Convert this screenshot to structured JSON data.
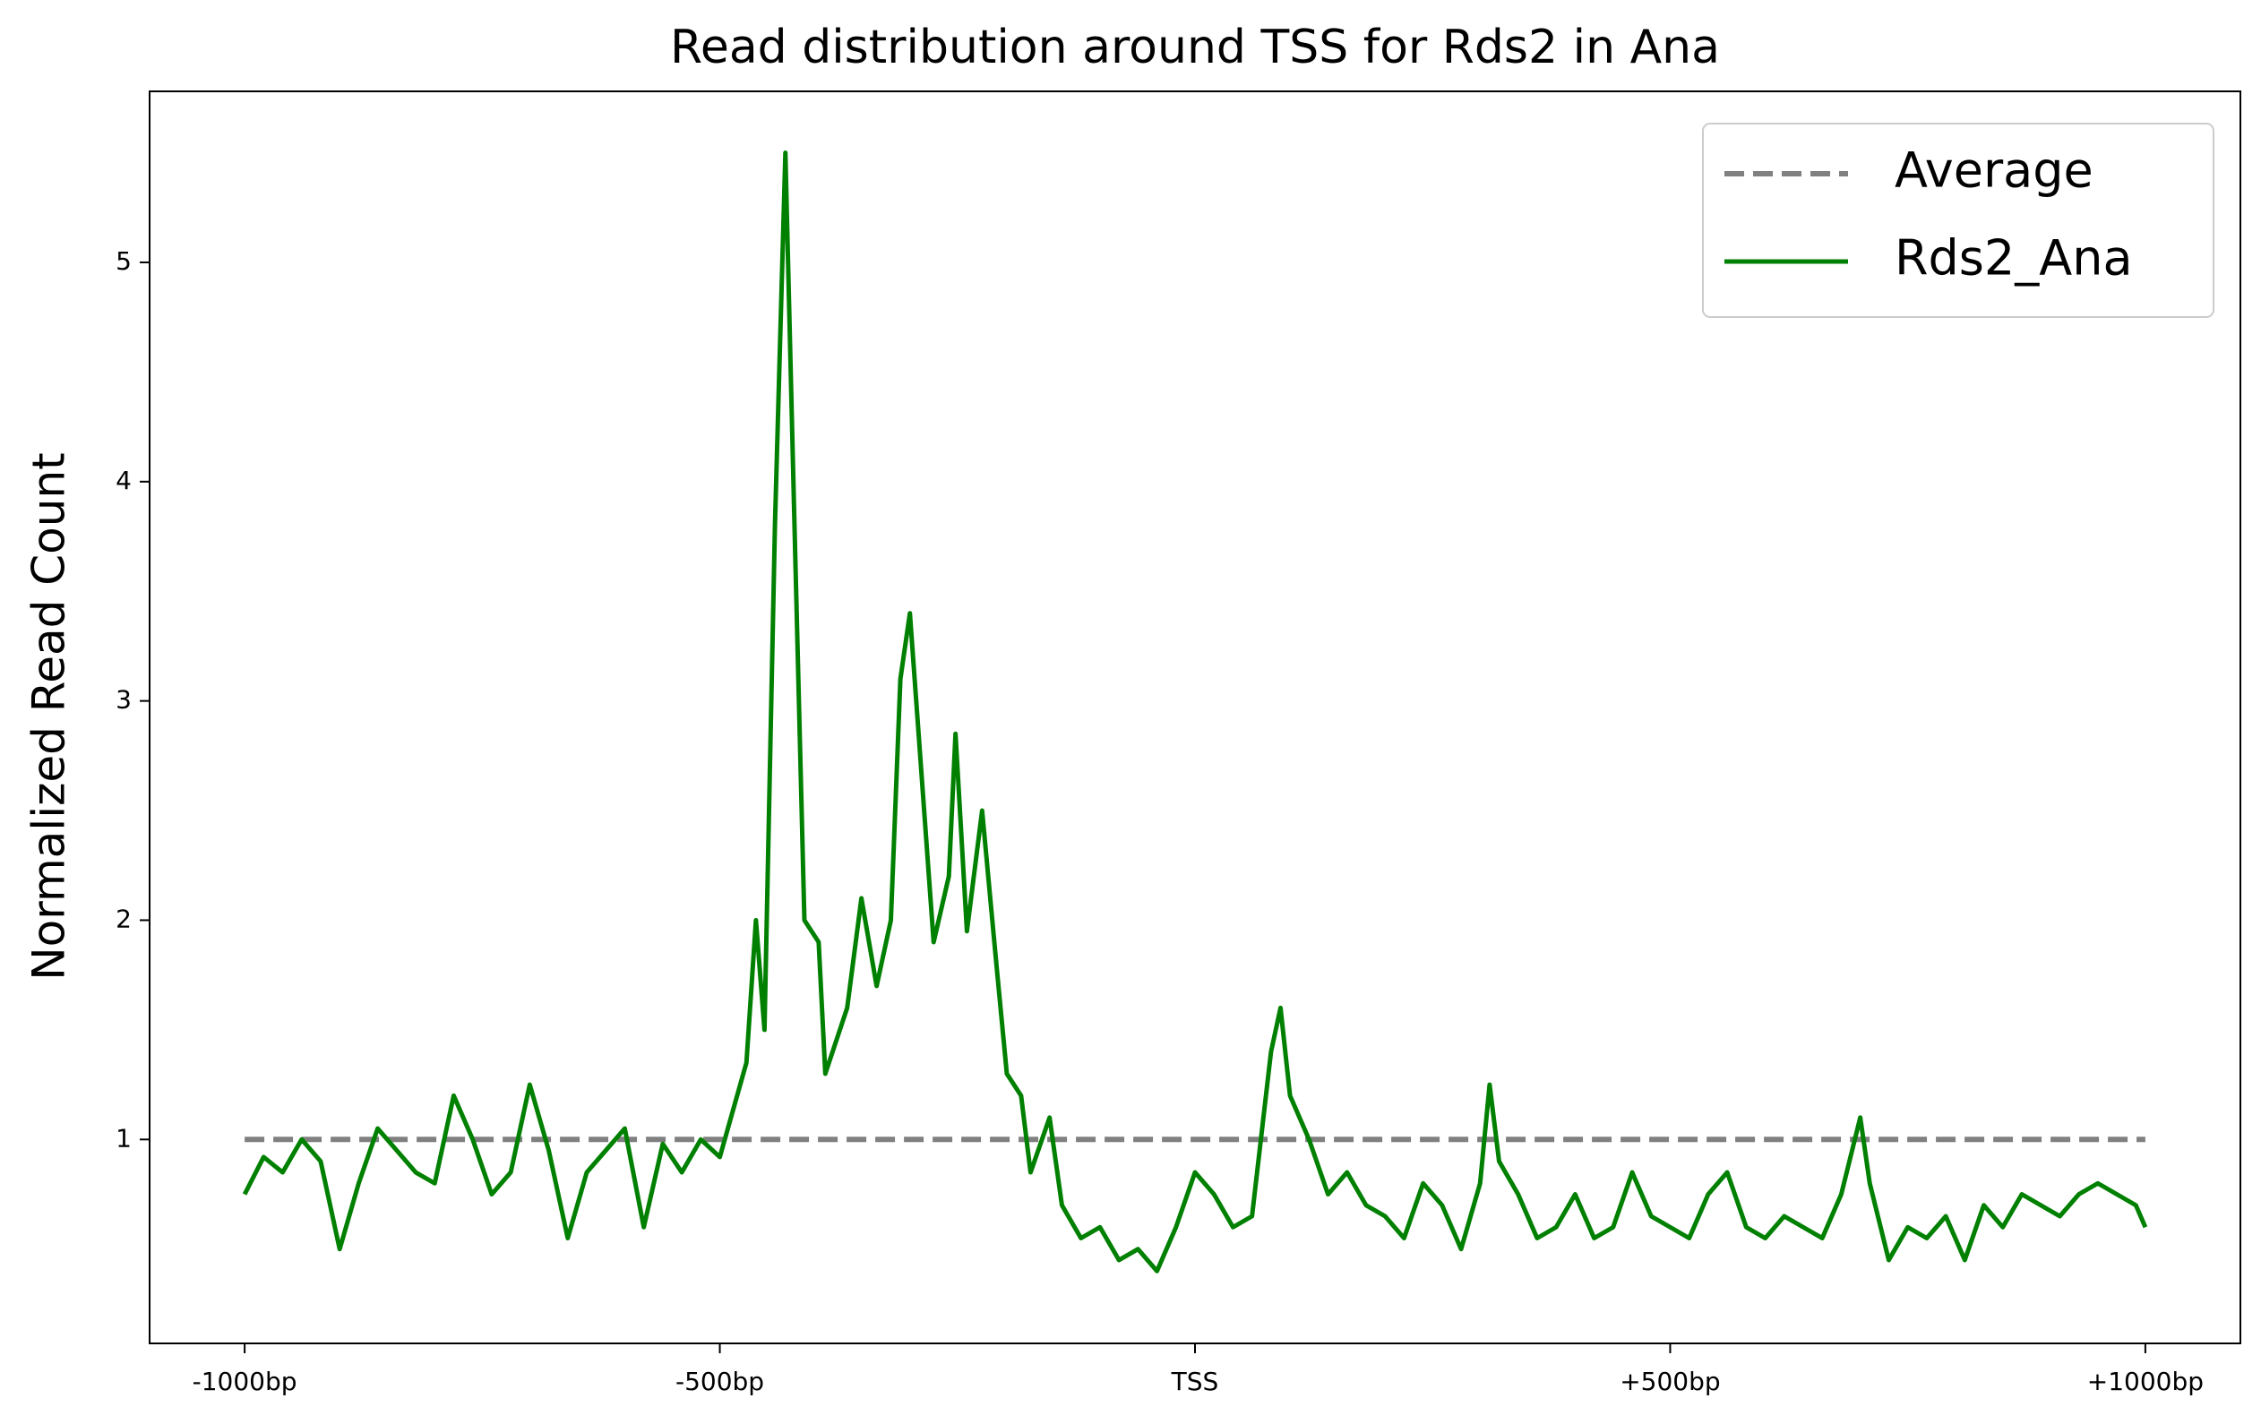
{
  "chart_data": {
    "type": "line",
    "title": "Read distribution around TSS for Rds2 in Ana",
    "y_label": "Normalized Read Count",
    "xlim": [
      -1100,
      1100
    ],
    "ylim": [
      0.07,
      5.78
    ],
    "xticks": [
      {
        "value": -1000,
        "label": "-1000bp"
      },
      {
        "value": -500,
        "label": "-500bp"
      },
      {
        "value": 0,
        "label": "TSS"
      },
      {
        "value": 500,
        "label": "+500bp"
      },
      {
        "value": 1000,
        "label": "+1000bp"
      }
    ],
    "yticks": [
      1,
      2,
      3,
      4,
      5
    ],
    "legend": "upper right",
    "series": [
      {
        "name": "Average",
        "color": "#808080",
        "dashed": true,
        "x": [
          -1000,
          1000
        ],
        "values": [
          1,
          1
        ]
      },
      {
        "name": "Rds2_Ana",
        "color": "#008000",
        "dashed": false,
        "x": [
          -1000,
          -980,
          -960,
          -940,
          -920,
          -900,
          -880,
          -860,
          -840,
          -820,
          -800,
          -780,
          -760,
          -740,
          -720,
          -700,
          -680,
          -660,
          -640,
          -620,
          -600,
          -580,
          -560,
          -540,
          -520,
          -500,
          -472,
          -462,
          -453,
          -442,
          -431,
          -422,
          -411,
          -396,
          -389,
          -366,
          -351,
          -335,
          -320,
          -310,
          -300,
          -290,
          -275,
          -259,
          -252,
          -240,
          -224,
          -209,
          -198,
          -183,
          -173,
          -153,
          -140,
          -120,
          -100,
          -80,
          -60,
          -40,
          -20,
          0,
          20,
          40,
          60,
          80,
          90,
          100,
          120,
          140,
          160,
          180,
          200,
          220,
          240,
          260,
          280,
          300,
          310,
          320,
          340,
          360,
          380,
          400,
          420,
          440,
          460,
          480,
          500,
          520,
          540,
          560,
          580,
          600,
          620,
          640,
          660,
          680,
          700,
          710,
          730,
          750,
          770,
          790,
          810,
          830,
          850,
          870,
          890,
          910,
          930,
          950,
          970,
          990,
          1000
        ],
        "values": [
          0.75,
          0.92,
          0.85,
          1.0,
          0.9,
          0.5,
          0.8,
          1.05,
          0.95,
          0.85,
          0.8,
          1.2,
          1.0,
          0.75,
          0.85,
          1.25,
          0.95,
          0.55,
          0.85,
          0.95,
          1.05,
          0.6,
          0.98,
          0.85,
          1.0,
          0.92,
          1.35,
          2.0,
          1.5,
          3.8,
          5.5,
          3.9,
          2.0,
          1.9,
          1.3,
          1.6,
          2.1,
          1.7,
          2.0,
          3.1,
          3.4,
          2.8,
          1.9,
          2.2,
          2.85,
          1.95,
          2.5,
          1.8,
          1.3,
          1.2,
          0.85,
          1.1,
          0.7,
          0.55,
          0.6,
          0.45,
          0.5,
          0.4,
          0.6,
          0.85,
          0.75,
          0.6,
          0.65,
          1.4,
          1.6,
          1.2,
          1.0,
          0.75,
          0.85,
          0.7,
          0.65,
          0.55,
          0.8,
          0.7,
          0.5,
          0.8,
          1.25,
          0.9,
          0.75,
          0.55,
          0.6,
          0.75,
          0.55,
          0.6,
          0.85,
          0.65,
          0.6,
          0.55,
          0.75,
          0.85,
          0.6,
          0.55,
          0.65,
          0.6,
          0.55,
          0.75,
          1.1,
          0.8,
          0.45,
          0.6,
          0.55,
          0.65,
          0.45,
          0.7,
          0.6,
          0.75,
          0.7,
          0.65,
          0.75,
          0.8,
          0.75,
          0.7,
          0.6
        ]
      }
    ]
  }
}
